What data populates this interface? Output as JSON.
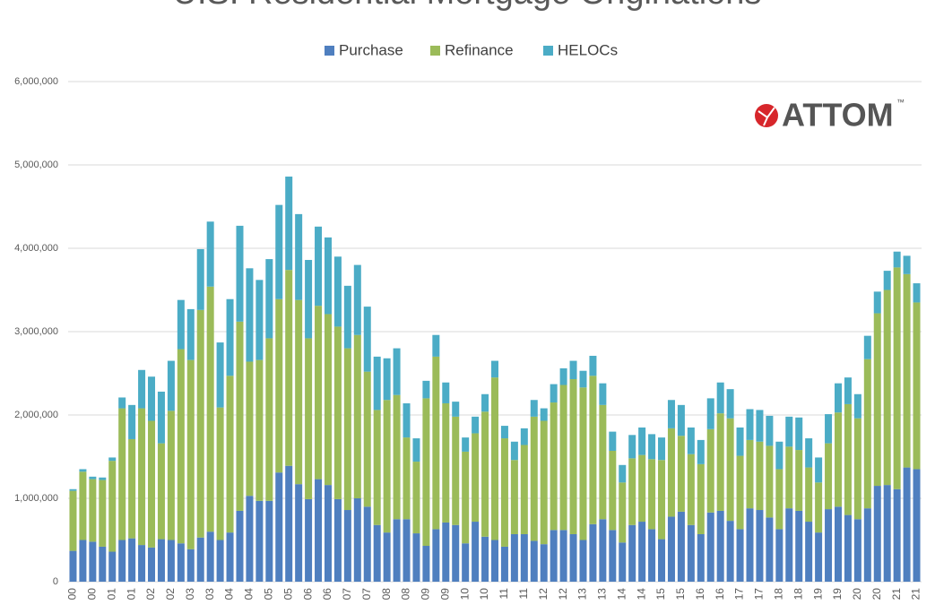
{
  "chart_data": {
    "type": "stacked_bar",
    "title": "U.S. Residential Mortgage Originations",
    "logo": {
      "text": "ATTOM",
      "mark": "™"
    },
    "categories": [
      "00",
      null,
      "00",
      null,
      "01",
      null,
      "01",
      null,
      "02",
      null,
      "02",
      null,
      "03",
      null,
      "03",
      null,
      "04",
      null,
      "04",
      null,
      "05",
      null,
      "05",
      null,
      "06",
      null,
      "06",
      null,
      "07",
      null,
      "07",
      null,
      "08",
      null,
      "08",
      null,
      "09",
      null,
      "09",
      null,
      "10",
      null,
      "10",
      null,
      "11",
      null,
      "11",
      null,
      "12",
      null,
      "12",
      null,
      "13",
      null,
      "13",
      null,
      "14",
      null,
      "14",
      null,
      "15",
      null,
      "15",
      null,
      "16",
      null,
      "16",
      null,
      "17",
      null,
      "17",
      null,
      "18",
      null,
      "18",
      null,
      "19",
      null,
      "19",
      null,
      "20",
      null,
      "20",
      null,
      "21",
      null,
      "21"
    ],
    "series": [
      {
        "name": "Purchase",
        "color": "#4f7fbf",
        "values": [
          370000,
          500000,
          480000,
          420000,
          360000,
          500000,
          520000,
          440000,
          410000,
          510000,
          500000,
          460000,
          390000,
          530000,
          600000,
          500000,
          590000,
          850000,
          1030000,
          970000,
          970000,
          1310000,
          1390000,
          1170000,
          990000,
          1230000,
          1160000,
          990000,
          860000,
          1000000,
          900000,
          680000,
          590000,
          750000,
          750000,
          580000,
          430000,
          630000,
          710000,
          680000,
          460000,
          720000,
          540000,
          500000,
          420000,
          570000,
          570000,
          490000,
          450000,
          620000,
          620000,
          570000,
          500000,
          690000,
          750000,
          620000,
          470000,
          680000,
          720000,
          630000,
          510000,
          780000,
          840000,
          680000,
          570000,
          830000,
          850000,
          730000,
          630000,
          880000,
          860000,
          770000,
          630000,
          880000,
          850000,
          720000,
          590000,
          870000,
          900000,
          800000,
          750000,
          880000,
          1150000,
          1160000,
          1110000,
          1370000,
          1350000
        ]
      },
      {
        "name": "Refinance",
        "color": "#9bbb59",
        "values": [
          720000,
          820000,
          750000,
          800000,
          1090000,
          1580000,
          1190000,
          1640000,
          1520000,
          1150000,
          1550000,
          2330000,
          2270000,
          2730000,
          2940000,
          1590000,
          1880000,
          2270000,
          1610000,
          1690000,
          1950000,
          2080000,
          2350000,
          2210000,
          1930000,
          2080000,
          2050000,
          2070000,
          1940000,
          1960000,
          1620000,
          1380000,
          1590000,
          1490000,
          980000,
          860000,
          1770000,
          2070000,
          1430000,
          1300000,
          1100000,
          1060000,
          1500000,
          1950000,
          1300000,
          890000,
          1070000,
          1490000,
          1480000,
          1530000,
          1740000,
          1860000,
          1830000,
          1780000,
          1370000,
          950000,
          720000,
          800000,
          800000,
          840000,
          950000,
          1060000,
          910000,
          850000,
          840000,
          1000000,
          1170000,
          1230000,
          880000,
          820000,
          820000,
          860000,
          720000,
          740000,
          730000,
          650000,
          600000,
          790000,
          1130000,
          1330000,
          1210000,
          1790000,
          2070000,
          2340000,
          2660000,
          2320000,
          2000000
        ]
      },
      {
        "name": "HELOCs",
        "color": "#4bacc6",
        "values": [
          20000,
          30000,
          30000,
          30000,
          40000,
          130000,
          410000,
          460000,
          530000,
          620000,
          600000,
          590000,
          610000,
          730000,
          780000,
          780000,
          920000,
          1150000,
          1120000,
          960000,
          950000,
          1130000,
          1120000,
          1030000,
          940000,
          950000,
          920000,
          840000,
          750000,
          840000,
          780000,
          640000,
          500000,
          560000,
          410000,
          280000,
          210000,
          260000,
          250000,
          180000,
          170000,
          200000,
          210000,
          200000,
          150000,
          220000,
          200000,
          200000,
          150000,
          220000,
          200000,
          220000,
          200000,
          240000,
          260000,
          230000,
          210000,
          280000,
          330000,
          300000,
          270000,
          340000,
          370000,
          320000,
          290000,
          370000,
          370000,
          350000,
          340000,
          370000,
          380000,
          360000,
          330000,
          360000,
          390000,
          350000,
          300000,
          350000,
          350000,
          320000,
          290000,
          280000,
          260000,
          230000,
          190000,
          220000,
          230000
        ]
      }
    ],
    "ylim": [
      0,
      6000000
    ],
    "yticks": [
      0,
      {
        "value": 1000000,
        "label": "1,000,000"
      },
      {
        "value": 2000000,
        "label": "2,000,000"
      },
      {
        "value": 3000000,
        "label": "3,000,000"
      },
      {
        "value": 4000000,
        "label": "4,000,000"
      },
      {
        "value": 5000000,
        "label": "5,000,000"
      },
      {
        "value": 6000000,
        "label": "6,000,000"
      }
    ],
    "grid": true
  }
}
